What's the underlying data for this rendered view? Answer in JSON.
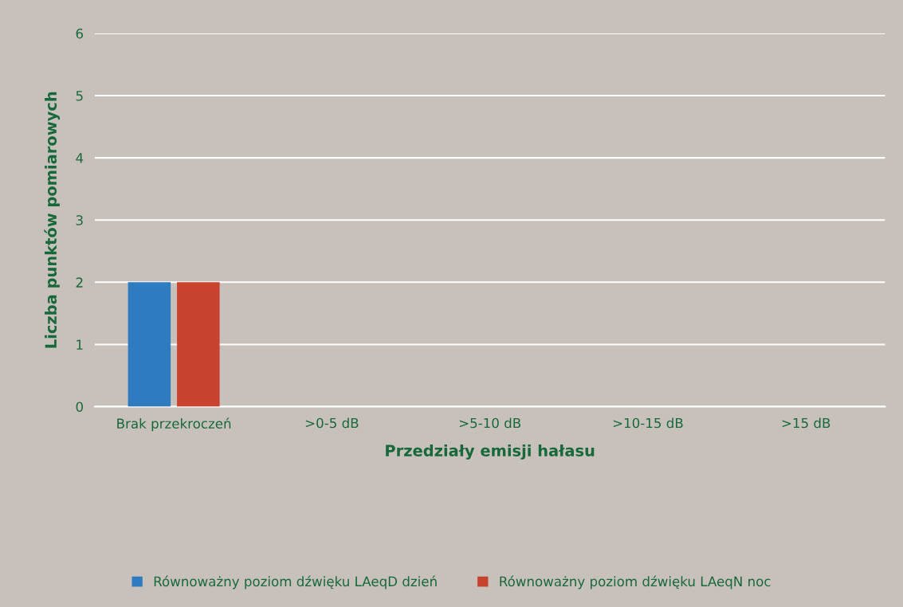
{
  "chart_data": {
    "type": "bar",
    "xlabel": "Przedziały emisji hałasu",
    "ylabel": "Liczba punktów pomiarowych",
    "categories": [
      "Brak przekroczeń",
      ">0-5 dB",
      ">5-10 dB",
      ">10-15 dB",
      ">15 dB"
    ],
    "series": [
      {
        "name": "Równoważny poziom dźwięku LAeqD dzień",
        "color": "#2f7bbf",
        "values": [
          2,
          0,
          0,
          0,
          0
        ]
      },
      {
        "name": "Równoważny poziom dźwięku LAeqN noc",
        "color": "#c8432f",
        "values": [
          2,
          0,
          0,
          0,
          0
        ]
      }
    ],
    "ylim": [
      0,
      6
    ],
    "yticks": [
      0,
      1,
      2,
      3,
      4,
      5,
      6
    ],
    "grid": "y",
    "legend": "bottom"
  }
}
